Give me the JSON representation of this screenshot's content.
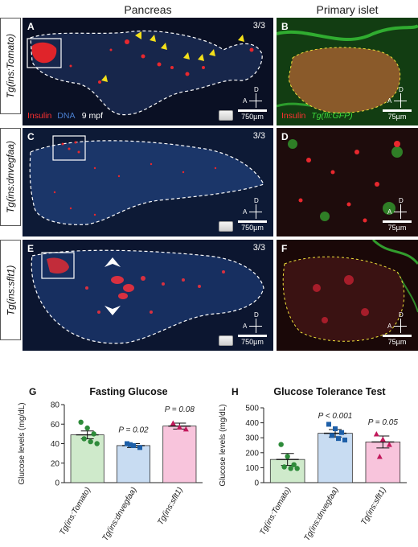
{
  "headers": {
    "pancreas": "Pancreas",
    "islet": "Primary islet"
  },
  "rows": [
    {
      "label": "Tg(ins:Tomato)",
      "left_letter": "A",
      "right_letter": "B",
      "fraction": "3/3",
      "legend_insulin": "Insulin",
      "legend_dna": "DNA",
      "age": "9 mpf",
      "right_legend_insulin": "Insulin",
      "right_legend_fli": "Tg(fli:GFP)",
      "scale_left": "750µm",
      "scale_right": "75µm"
    },
    {
      "label": "Tg(ins:dnvegfaa)",
      "left_letter": "C",
      "right_letter": "D",
      "fraction": "3/3",
      "scale_left": "750µm",
      "scale_right": "75µm"
    },
    {
      "label": "Tg(ins:sflt1)",
      "left_letter": "E",
      "right_letter": "F",
      "fraction": "3/3",
      "scale_left": "750µm",
      "scale_right": "75µm"
    }
  ],
  "axis_letters": {
    "d": "D",
    "a": "A"
  },
  "colors": {
    "insulin": "#ff3030",
    "dna": "#4a7fd0",
    "gfp": "#3ddc3d",
    "tomato": "#2e8b3a",
    "dnvegfaa": "#1d5fa8",
    "sflt1": "#c2185b"
  },
  "chart_data": [
    {
      "panel_letter": "G",
      "type": "bar",
      "title": "Fasting Glucose",
      "ylabel": "Glucose levels (mg/dL)",
      "ylim": [
        0,
        80
      ],
      "yticks": [
        0,
        20,
        40,
        60,
        80
      ],
      "categories": [
        "Tg(ins:Tomato)",
        "Tg(ins:dnvegfaa)",
        "Tg(ins:sflt1)"
      ],
      "values": [
        49,
        38,
        58
      ],
      "errors": [
        4,
        2,
        3
      ],
      "pvalues": [
        "",
        "P = 0.02",
        "P = 0.08"
      ],
      "points": [
        [
          62,
          56,
          50,
          45,
          42,
          40
        ],
        [
          40,
          38,
          36,
          39
        ],
        [
          61,
          57,
          55
        ]
      ]
    },
    {
      "panel_letter": "H",
      "type": "bar",
      "title": "Glucose Tolerance Test",
      "ylabel": "Glucose levels (mg/dL)",
      "ylim": [
        0,
        500
      ],
      "yticks": [
        0,
        100,
        200,
        300,
        400,
        500
      ],
      "categories": [
        "Tg(ins:Tomato)",
        "Tg(ins:dnvegfaa)",
        "Tg(ins:sflt1)"
      ],
      "values": [
        155,
        330,
        272
      ],
      "errors": [
        40,
        25,
        40
      ],
      "pvalues": [
        "",
        "P < 0.001",
        "P = 0.05"
      ],
      "points": [
        [
          255,
          175,
          120,
          105,
          95,
          95
        ],
        [
          390,
          360,
          335,
          315,
          295,
          285
        ],
        [
          325,
          290,
          255,
          175
        ]
      ]
    }
  ]
}
